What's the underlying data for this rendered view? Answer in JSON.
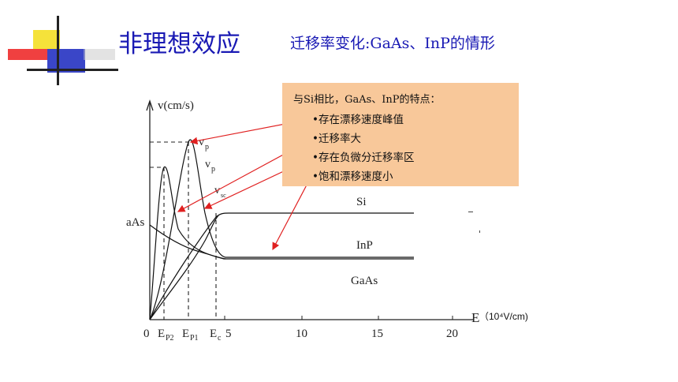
{
  "header": {
    "title": "非理想效应",
    "subtitle": "迁移率变化:GaAs、InP的情形"
  },
  "callout": {
    "heading": "与Si相比，GaAs、InP的特点：",
    "items": [
      "•存在漂移速度峰值",
      "•迁移率大",
      "•存在负微分迁移率区",
      "•饱和漂移速度小"
    ]
  },
  "figure": {
    "y_axis_label": "v(cm/s)",
    "x_axis_label": "E",
    "x_unit": "（10⁴V/cm)",
    "x_ticks": [
      "0",
      "5",
      "10",
      "15",
      "20"
    ],
    "special_ticks": {
      "ep2": "E",
      "ep2_sub": "P2",
      "ep1": "E",
      "ep1_sub": "P1",
      "ec": "E",
      "ec_sub": "c"
    },
    "peak_labels": {
      "vp_top": "v",
      "vp_top_sub": "p",
      "vp_mid": "v",
      "vp_mid_sub": "p",
      "vsat": "v",
      "vsat_sub": "sc"
    },
    "curve_labels": {
      "si": "Si",
      "inp": "InP",
      "gaas": "GaAs",
      "gaas_left": "aAs"
    }
  },
  "colors": {
    "title": "#1a1ab4",
    "callout_bg": "#f8c89a",
    "arrow": "#e02020",
    "curve": "#111111"
  }
}
